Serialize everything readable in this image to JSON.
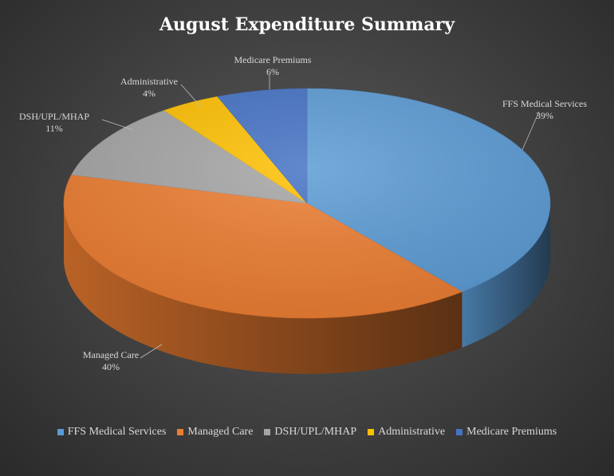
{
  "chart_data": {
    "type": "pie",
    "title": "August Expenditure Summary",
    "categories": [
      "FFS Medical Services",
      "Managed Care",
      "DSH/UPL/MHAP",
      "Administrative",
      "Medicare Premiums"
    ],
    "values": [
      39,
      40,
      11,
      4,
      6
    ],
    "value_labels": [
      "39%",
      "40%",
      "11%",
      "4%",
      "6%"
    ],
    "colors": [
      "#5b9bd5",
      "#ed7d31",
      "#a5a5a5",
      "#ffc000",
      "#4472c4"
    ],
    "style": "3d",
    "legend": "bottom"
  }
}
